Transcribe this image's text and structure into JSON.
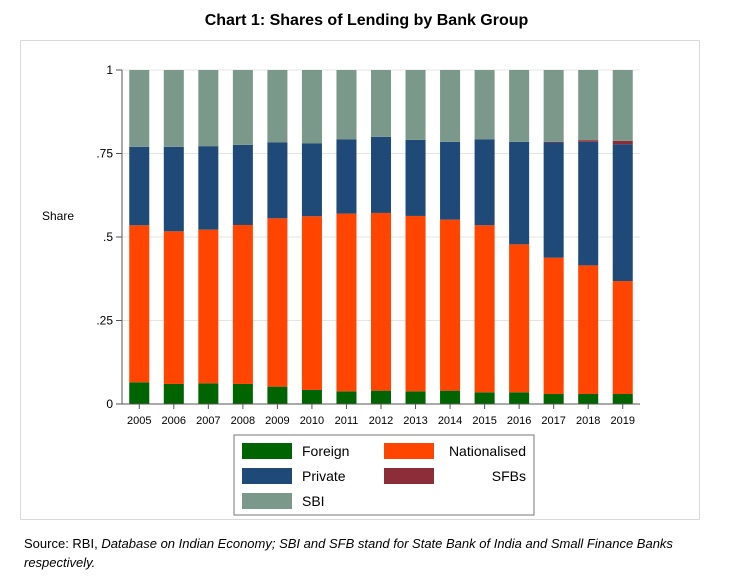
{
  "chart_data": {
    "type": "bar",
    "stacked": true,
    "title": "Chart 1: Shares of Lending by Bank Group",
    "ylabel": "Share",
    "xlabel": "",
    "ylim": [
      0,
      1
    ],
    "yticks": [
      {
        "value": 0,
        "label": "0"
      },
      {
        "value": 0.25,
        "label": ".25"
      },
      {
        "value": 0.5,
        "label": ".5"
      },
      {
        "value": 0.75,
        "label": ".75"
      },
      {
        "value": 1,
        "label": "1"
      }
    ],
    "categories": [
      "2005",
      "2006",
      "2007",
      "2008",
      "2009",
      "2010",
      "2011",
      "2012",
      "2013",
      "2014",
      "2015",
      "2016",
      "2017",
      "2018",
      "2019"
    ],
    "series": [
      {
        "name": "Foreign",
        "color": "#006400",
        "values": [
          0.065,
          0.06,
          0.062,
          0.06,
          0.052,
          0.042,
          0.038,
          0.04,
          0.038,
          0.04,
          0.035,
          0.035,
          0.03,
          0.03,
          0.03
        ]
      },
      {
        "name": "Nationalised",
        "color": "#ff4500",
        "values": [
          0.47,
          0.457,
          0.46,
          0.476,
          0.504,
          0.52,
          0.532,
          0.532,
          0.525,
          0.512,
          0.5,
          0.443,
          0.408,
          0.385,
          0.338
        ]
      },
      {
        "name": "Private",
        "color": "#1f4a78",
        "values": [
          0.235,
          0.253,
          0.25,
          0.24,
          0.227,
          0.218,
          0.222,
          0.228,
          0.228,
          0.233,
          0.257,
          0.307,
          0.345,
          0.37,
          0.41
        ]
      },
      {
        "name": "SFBs",
        "color": "#8b2e3a",
        "values": [
          0,
          0,
          0,
          0,
          0,
          0,
          0,
          0,
          0,
          0,
          0,
          0,
          0.002,
          0.005,
          0.01
        ]
      },
      {
        "name": "SBI",
        "color": "#7a998a",
        "values": [
          0.23,
          0.23,
          0.228,
          0.224,
          0.217,
          0.22,
          0.208,
          0.2,
          0.209,
          0.215,
          0.208,
          0.215,
          0.215,
          0.21,
          0.212
        ]
      }
    ],
    "legend": {
      "position": "bottom",
      "entries": [
        "Foreign",
        "Nationalised",
        "Private",
        "SFBs",
        "SBI"
      ]
    },
    "grid": true
  },
  "source": {
    "prefix": "Source: RBI, ",
    "italic": "Database on Indian Economy; SBI and SFB stand for State Bank of India and Small Finance Banks respectively."
  }
}
